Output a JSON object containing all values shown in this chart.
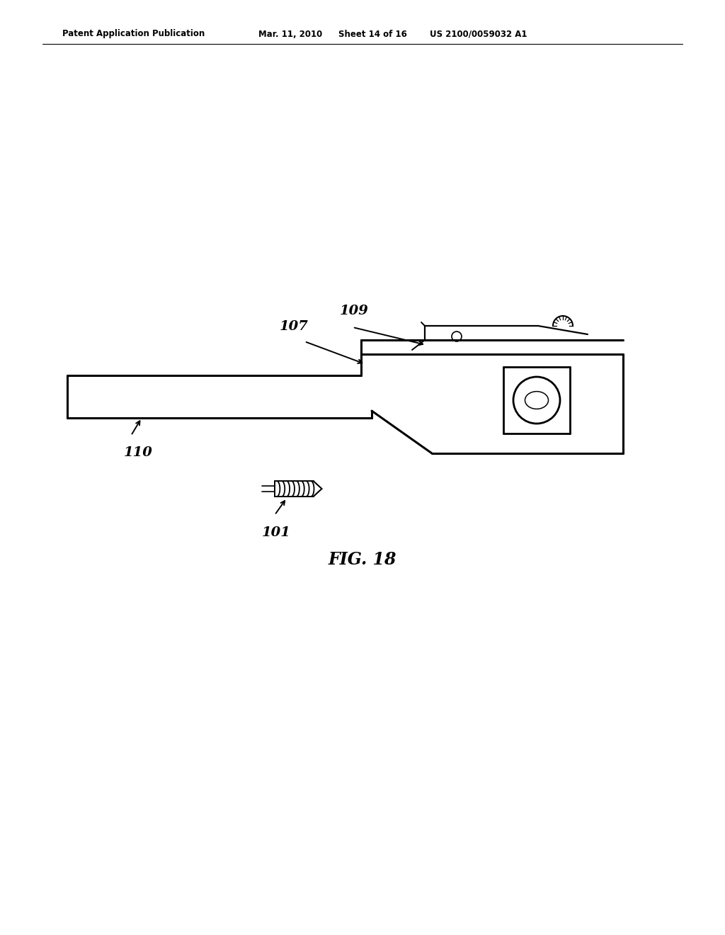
{
  "background_color": "#ffffff",
  "header_left": "Patent Application Publication",
  "header_mid": "Mar. 11, 2010  Sheet 14 of 16",
  "header_right": "US 2100/0059032 A1",
  "fig_label": "FIG. 18",
  "label_107": "107",
  "label_109": "109",
  "label_110": "110",
  "label_101": "101",
  "line_color": "#000000",
  "text_color": "#000000"
}
